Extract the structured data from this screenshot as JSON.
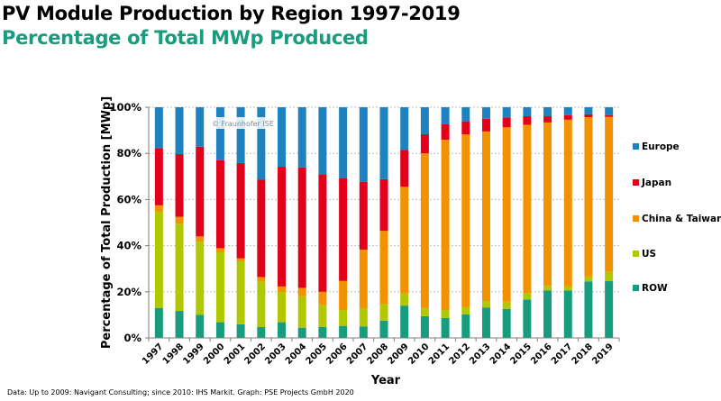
{
  "header": {
    "title": "PV Module Production by Region 1997-2019",
    "subtitle": "Percentage of Total MWp Produced"
  },
  "watermark": "© Fraunhofer ISE",
  "footer": "Data: Up to 2009: Navigant Consulting; since 2010: IHS Markit. Graph: PSE Projects GmbH 2020",
  "colors": {
    "Europe": "#1f82c0",
    "Japan": "#e2001a",
    "China & Taiwan": "#f39200",
    "US": "#b1c800",
    "ROW": "#179c7d"
  },
  "chart_data": {
    "type": "bar",
    "stacked": true,
    "title": "PV Module Production by Region 1997-2019",
    "subtitle": "Percentage of Total MWp Produced",
    "xlabel": "Year",
    "ylabel": "Percentage of Total Production [MWp]",
    "ylim": [
      0,
      100
    ],
    "yticks": [
      "0%",
      "20%",
      "40%",
      "60%",
      "80%",
      "100%"
    ],
    "grid": true,
    "legend_position": "right",
    "categories": [
      "1997",
      "1998",
      "1999",
      "2000",
      "2001",
      "2002",
      "2003",
      "2004",
      "2005",
      "2006",
      "2007",
      "2008",
      "2009",
      "2010",
      "2011",
      "2012",
      "2013",
      "2014",
      "2015",
      "2016",
      "2017",
      "2018",
      "2019"
    ],
    "series": [
      {
        "name": "ROW",
        "values": [
          13.0,
          11.7,
          10.0,
          6.8,
          5.9,
          4.7,
          6.8,
          4.4,
          4.8,
          5.2,
          5.0,
          7.5,
          14.0,
          9.4,
          8.6,
          10.2,
          13.2,
          12.6,
          16.7,
          20.6,
          20.6,
          24.5,
          24.6
        ]
      },
      {
        "name": "US",
        "values": [
          41.7,
          37.8,
          31.7,
          30.3,
          27.3,
          19.7,
          13.1,
          13.6,
          9.5,
          6.9,
          7.9,
          7.1,
          5.2,
          3.6,
          3.5,
          3.1,
          2.8,
          3.1,
          2.8,
          2.0,
          1.7,
          2.1,
          4.0
        ]
      },
      {
        "name": "China & Taiwan",
        "values": [
          2.8,
          3.0,
          2.3,
          1.8,
          1.3,
          2.0,
          2.4,
          3.7,
          5.7,
          12.6,
          25.4,
          31.8,
          46.3,
          67.0,
          73.8,
          74.9,
          73.5,
          75.6,
          72.9,
          70.8,
          72.3,
          69.1,
          67.2
        ]
      },
      {
        "name": "Japan",
        "values": [
          24.8,
          27.2,
          38.9,
          38.1,
          41.3,
          42.3,
          51.9,
          52.2,
          51.0,
          44.6,
          29.4,
          22.4,
          16.0,
          8.3,
          6.7,
          5.7,
          5.5,
          4.3,
          3.7,
          2.7,
          2.0,
          1.2,
          0.7
        ]
      },
      {
        "name": "Europe",
        "values": [
          17.7,
          20.3,
          17.1,
          23.0,
          24.2,
          31.3,
          25.8,
          26.1,
          29.0,
          30.7,
          32.3,
          31.2,
          18.5,
          11.7,
          7.4,
          6.1,
          5.0,
          4.4,
          3.9,
          3.9,
          3.4,
          3.1,
          3.5
        ]
      }
    ],
    "legend": [
      "Europe",
      "Japan",
      "China & Taiwan",
      "US",
      "ROW"
    ]
  }
}
